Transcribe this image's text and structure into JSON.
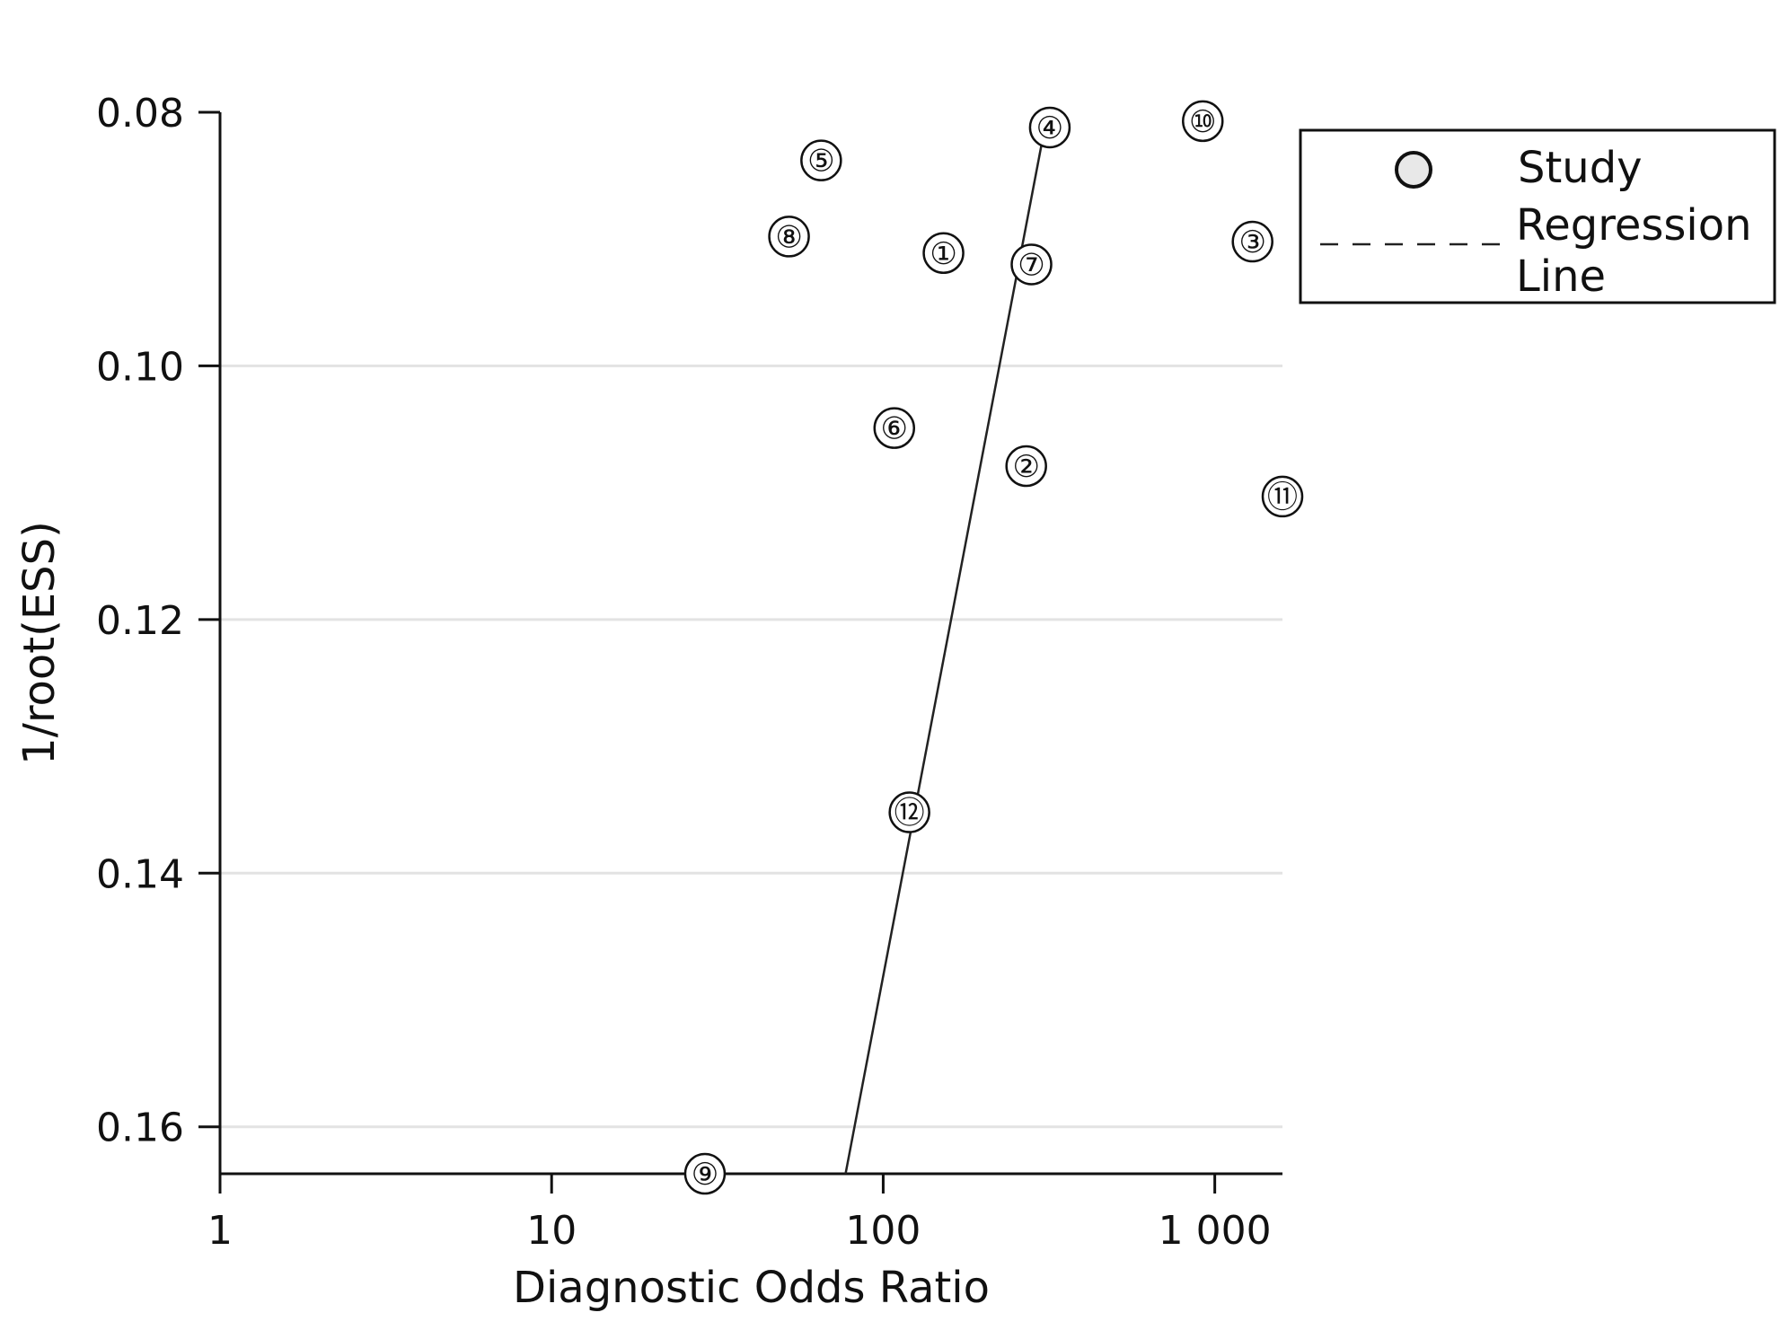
{
  "chart_data": {
    "type": "scatter",
    "title": "",
    "xlabel": "Diagnostic Odds Ratio",
    "ylabel": "1/root(ESS)",
    "x_scale": "log",
    "y_axis_inverted": true,
    "xlim": [
      1,
      1600
    ],
    "ylim": [
      0.08,
      0.1637
    ],
    "x_ticks": [
      {
        "value": 1,
        "label": "1"
      },
      {
        "value": 10,
        "label": "10"
      },
      {
        "value": 100,
        "label": "100"
      },
      {
        "value": 1000,
        "label": "1 000"
      }
    ],
    "y_ticks": [
      {
        "value": 0.08,
        "label": "0.08"
      },
      {
        "value": 0.1,
        "label": "0.10"
      },
      {
        "value": 0.12,
        "label": "0.12"
      },
      {
        "value": 0.14,
        "label": "0.14"
      },
      {
        "value": 0.16,
        "label": "0.16"
      }
    ],
    "grid": {
      "horizontal": true,
      "vertical": false
    },
    "series": [
      {
        "name": "Study",
        "points": [
          {
            "label": "①",
            "x": 152,
            "y": 0.0911
          },
          {
            "label": "②",
            "x": 270,
            "y": 0.1079
          },
          {
            "label": "③",
            "x": 1300,
            "y": 0.0902
          },
          {
            "label": "④",
            "x": 318,
            "y": 0.0812
          },
          {
            "label": "⑤",
            "x": 65,
            "y": 0.0838
          },
          {
            "label": "⑥",
            "x": 108,
            "y": 0.1049
          },
          {
            "label": "⑦",
            "x": 280,
            "y": 0.092
          },
          {
            "label": "⑧",
            "x": 52,
            "y": 0.0898
          },
          {
            "label": "⑨",
            "x": 29,
            "y": 0.1637
          },
          {
            "label": "⑩",
            "x": 920,
            "y": 0.0807
          },
          {
            "label": "⑪",
            "x": 1600,
            "y": 0.1103
          },
          {
            "label": "⑫",
            "x": 120,
            "y": 0.1352
          }
        ]
      },
      {
        "name": "Regression Line",
        "line": [
          {
            "x": 77,
            "y": 0.1637
          },
          {
            "x": 300,
            "y": 0.0826
          }
        ]
      }
    ],
    "legend": {
      "position": "top-right",
      "items": [
        {
          "label": "Study"
        },
        {
          "label": "Regression",
          "label2": "Line"
        }
      ]
    },
    "colors": {
      "axis": "#111111",
      "grid": "#e3e3e3",
      "marker_fill": "#e8e8e8",
      "line": "#222222"
    }
  }
}
